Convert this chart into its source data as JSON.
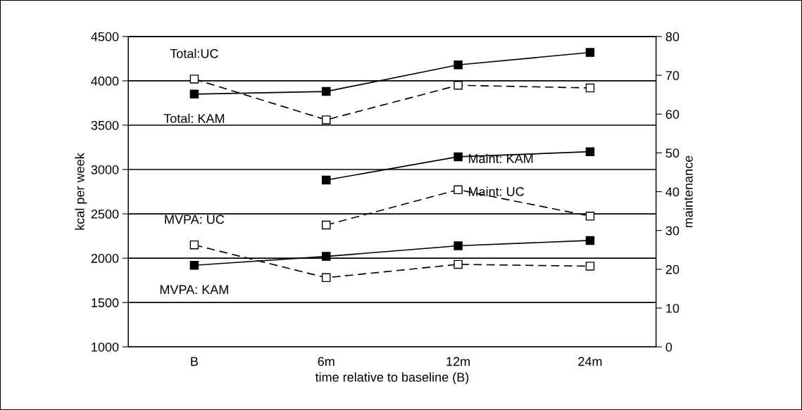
{
  "chart_data": {
    "type": "line",
    "xlabel": "time relative to baseline (B)",
    "ylabel": "kcal per week",
    "y2label": "maintenance",
    "categories": [
      "B",
      "6m",
      "12m",
      "24m"
    ],
    "series": [
      {
        "name": "Total: KAM",
        "color": "#000000",
        "line_style": "solid",
        "values": [
          3850,
          3880,
          4180,
          4320
        ]
      },
      {
        "name": "Total:UC",
        "color": "#000000",
        "line_style": "dashed",
        "values": [
          4020,
          3560,
          3950,
          3920
        ]
      },
      {
        "name": "Maint: KAM",
        "color": "#000000",
        "line_style": "solid",
        "axis": "y2",
        "values": [
          null,
          43,
          49,
          50.3
        ]
      },
      {
        "name": "Maint: UC",
        "color": "#000000",
        "line_style": "dashed",
        "axis": "y2",
        "values": [
          null,
          31.4,
          40.5,
          33.7
        ]
      },
      {
        "name": "MVPA: KAM",
        "color": "#000000",
        "line_style": "solid",
        "values": [
          1920,
          2020,
          2140,
          2200
        ]
      },
      {
        "name": "MVPA: UC",
        "color": "#000000",
        "line_style": "dashed",
        "values": [
          2150,
          1780,
          1930,
          1910
        ]
      }
    ],
    "ylim": [
      1000,
      4500
    ],
    "yticks": [
      1000,
      1500,
      2000,
      2500,
      3000,
      3500,
      4000,
      4500
    ],
    "y2lim": [
      0,
      80
    ],
    "y2ticks": [
      0,
      10,
      20,
      30,
      40,
      50,
      60,
      70,
      80
    ],
    "grid": "y",
    "legend": false,
    "marker": "square"
  }
}
